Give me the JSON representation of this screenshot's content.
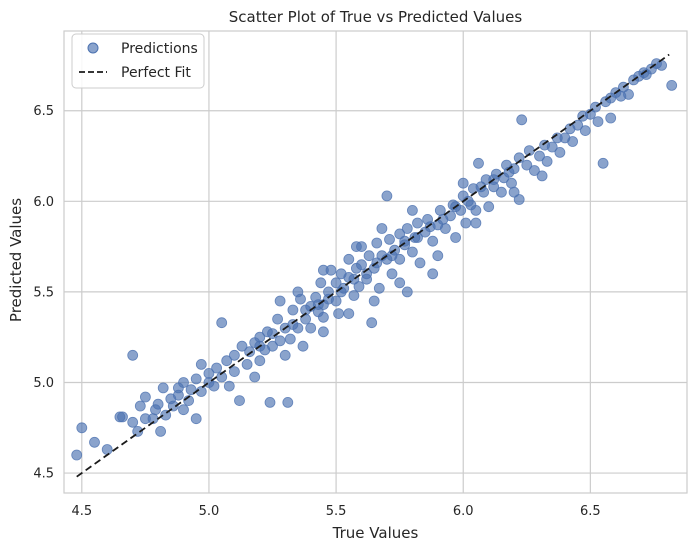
{
  "chart_data": {
    "type": "scatter",
    "title": "Scatter Plot of True vs Predicted Values",
    "xlabel": "True Values",
    "ylabel": "Predicted Values",
    "xlim": [
      4.43,
      6.88
    ],
    "ylim": [
      4.39,
      6.94
    ],
    "xticks": [
      4.5,
      5.0,
      5.5,
      6.0,
      6.5
    ],
    "xtick_labels": [
      "4.5",
      "5.0",
      "5.5",
      "6.0",
      "6.5"
    ],
    "yticks": [
      4.5,
      5.0,
      5.5,
      6.0,
      6.5
    ],
    "ytick_labels": [
      "4.5",
      "5.0",
      "5.5",
      "6.0",
      "6.5"
    ],
    "grid": true,
    "legend": {
      "position": "top-left",
      "entries": [
        "Predictions",
        "Perfect Fit"
      ]
    },
    "colors": {
      "points": "#4c72b0",
      "line": "#1a1a1a",
      "grid": "#cccccc",
      "axes": "#cccccc"
    },
    "series": [
      {
        "name": "Predictions",
        "kind": "scatter",
        "points": [
          [
            4.48,
            4.6
          ],
          [
            4.5,
            4.75
          ],
          [
            4.55,
            4.67
          ],
          [
            4.6,
            4.63
          ],
          [
            4.65,
            4.81
          ],
          [
            4.66,
            4.81
          ],
          [
            4.7,
            5.15
          ],
          [
            4.7,
            4.78
          ],
          [
            4.72,
            4.73
          ],
          [
            4.73,
            4.87
          ],
          [
            4.75,
            4.8
          ],
          [
            4.75,
            4.92
          ],
          [
            4.78,
            4.8
          ],
          [
            4.79,
            4.85
          ],
          [
            4.8,
            4.88
          ],
          [
            4.81,
            4.73
          ],
          [
            4.82,
            4.97
          ],
          [
            4.83,
            4.82
          ],
          [
            4.85,
            4.91
          ],
          [
            4.86,
            4.87
          ],
          [
            4.88,
            4.93
          ],
          [
            4.88,
            4.97
          ],
          [
            4.9,
            4.85
          ],
          [
            4.9,
            5.0
          ],
          [
            4.92,
            4.9
          ],
          [
            4.93,
            4.96
          ],
          [
            4.95,
            4.8
          ],
          [
            4.95,
            5.02
          ],
          [
            4.97,
            4.95
          ],
          [
            4.97,
            5.1
          ],
          [
            5.0,
            5.0
          ],
          [
            5.0,
            5.05
          ],
          [
            5.02,
            4.98
          ],
          [
            5.03,
            5.08
          ],
          [
            5.05,
            5.33
          ],
          [
            5.05,
            5.03
          ],
          [
            5.07,
            5.12
          ],
          [
            5.08,
            4.98
          ],
          [
            5.1,
            5.15
          ],
          [
            5.1,
            5.06
          ],
          [
            5.12,
            4.9
          ],
          [
            5.13,
            5.2
          ],
          [
            5.15,
            5.1
          ],
          [
            5.16,
            5.17
          ],
          [
            5.18,
            5.03
          ],
          [
            5.18,
            5.22
          ],
          [
            5.2,
            5.12
          ],
          [
            5.2,
            5.25
          ],
          [
            5.22,
            5.18
          ],
          [
            5.23,
            5.28
          ],
          [
            5.24,
            4.89
          ],
          [
            5.25,
            5.2
          ],
          [
            5.27,
            5.35
          ],
          [
            5.28,
            5.23
          ],
          [
            5.3,
            5.15
          ],
          [
            5.3,
            5.3
          ],
          [
            5.31,
            4.89
          ],
          [
            5.32,
            5.24
          ],
          [
            5.33,
            5.4
          ],
          [
            5.35,
            5.3
          ],
          [
            5.36,
            5.46
          ],
          [
            5.37,
            5.2
          ],
          [
            5.38,
            5.35
          ],
          [
            5.4,
            5.42
          ],
          [
            5.4,
            5.3
          ],
          [
            5.42,
            5.47
          ],
          [
            5.43,
            5.39
          ],
          [
            5.44,
            5.55
          ],
          [
            5.45,
            5.43
          ],
          [
            5.45,
            5.36
          ],
          [
            5.47,
            5.5
          ],
          [
            5.48,
            5.62
          ],
          [
            5.5,
            5.45
          ],
          [
            5.5,
            5.55
          ],
          [
            5.51,
            5.38
          ],
          [
            5.52,
            5.6
          ],
          [
            5.53,
            5.52
          ],
          [
            5.55,
            5.68
          ],
          [
            5.55,
            5.58
          ],
          [
            5.57,
            5.48
          ],
          [
            5.58,
            5.63
          ],
          [
            5.59,
            5.53
          ],
          [
            5.6,
            5.75
          ],
          [
            5.6,
            5.65
          ],
          [
            5.62,
            5.57
          ],
          [
            5.63,
            5.7
          ],
          [
            5.64,
            5.33
          ],
          [
            5.65,
            5.63
          ],
          [
            5.66,
            5.77
          ],
          [
            5.67,
            5.52
          ],
          [
            5.68,
            5.7
          ],
          [
            5.7,
            5.68
          ],
          [
            5.7,
            6.03
          ],
          [
            5.71,
            5.79
          ],
          [
            5.72,
            5.6
          ],
          [
            5.73,
            5.73
          ],
          [
            5.75,
            5.82
          ],
          [
            5.75,
            5.68
          ],
          [
            5.77,
            5.76
          ],
          [
            5.78,
            5.5
          ],
          [
            5.78,
            5.85
          ],
          [
            5.8,
            5.72
          ],
          [
            5.81,
            5.8
          ],
          [
            5.82,
            5.88
          ],
          [
            5.83,
            5.66
          ],
          [
            5.85,
            5.83
          ],
          [
            5.86,
            5.9
          ],
          [
            5.88,
            5.78
          ],
          [
            5.88,
            5.6
          ],
          [
            5.9,
            5.87
          ],
          [
            5.91,
            5.95
          ],
          [
            5.93,
            5.85
          ],
          [
            5.95,
            5.92
          ],
          [
            5.96,
            5.98
          ],
          [
            5.97,
            5.8
          ],
          [
            5.99,
            5.95
          ],
          [
            6.0,
            6.03
          ],
          [
            6.01,
            5.88
          ],
          [
            6.03,
            5.98
          ],
          [
            6.04,
            6.07
          ],
          [
            6.05,
            5.95
          ],
          [
            6.06,
            6.21
          ],
          [
            6.08,
            6.05
          ],
          [
            6.09,
            6.12
          ],
          [
            6.1,
            5.97
          ],
          [
            6.12,
            6.08
          ],
          [
            6.13,
            6.15
          ],
          [
            6.15,
            6.05
          ],
          [
            6.16,
            6.13
          ],
          [
            6.17,
            6.2
          ],
          [
            6.19,
            6.1
          ],
          [
            6.2,
            6.18
          ],
          [
            6.22,
            6.24
          ],
          [
            6.22,
            6.01
          ],
          [
            6.23,
            6.45
          ],
          [
            6.25,
            6.2
          ],
          [
            6.26,
            6.28
          ],
          [
            6.28,
            6.17
          ],
          [
            6.3,
            6.25
          ],
          [
            6.31,
            6.14
          ],
          [
            6.32,
            6.31
          ],
          [
            6.33,
            6.22
          ],
          [
            6.35,
            6.3
          ],
          [
            6.37,
            6.35
          ],
          [
            6.38,
            6.27
          ],
          [
            6.4,
            6.35
          ],
          [
            6.42,
            6.4
          ],
          [
            6.43,
            6.33
          ],
          [
            6.45,
            6.42
          ],
          [
            6.47,
            6.47
          ],
          [
            6.48,
            6.39
          ],
          [
            6.5,
            6.48
          ],
          [
            6.52,
            6.52
          ],
          [
            6.53,
            6.44
          ],
          [
            6.55,
            6.21
          ],
          [
            6.56,
            6.55
          ],
          [
            6.58,
            6.57
          ],
          [
            6.58,
            6.46
          ],
          [
            6.6,
            6.6
          ],
          [
            6.62,
            6.58
          ],
          [
            6.63,
            6.63
          ],
          [
            6.65,
            6.59
          ],
          [
            6.67,
            6.67
          ],
          [
            6.69,
            6.69
          ],
          [
            6.71,
            6.71
          ],
          [
            6.72,
            6.7
          ],
          [
            6.74,
            6.73
          ],
          [
            6.76,
            6.76
          ],
          [
            6.78,
            6.75
          ],
          [
            6.82,
            6.64
          ],
          [
            5.2,
            5.2
          ],
          [
            5.25,
            5.27
          ],
          [
            5.33,
            5.32
          ],
          [
            5.38,
            5.4
          ],
          [
            5.43,
            5.43
          ],
          [
            5.47,
            5.46
          ],
          [
            5.52,
            5.5
          ],
          [
            5.57,
            5.57
          ],
          [
            5.62,
            5.6
          ],
          [
            5.66,
            5.66
          ],
          [
            5.72,
            5.7
          ],
          [
            5.77,
            5.78
          ],
          [
            5.82,
            5.8
          ],
          [
            5.87,
            5.86
          ],
          [
            5.92,
            5.9
          ],
          [
            5.97,
            5.97
          ],
          [
            6.02,
            6.0
          ],
          [
            6.07,
            6.08
          ],
          [
            6.12,
            6.12
          ],
          [
            6.18,
            6.16
          ],
          [
            5.28,
            5.45
          ],
          [
            5.35,
            5.5
          ],
          [
            5.45,
            5.62
          ],
          [
            5.58,
            5.75
          ],
          [
            5.68,
            5.85
          ],
          [
            5.8,
            5.95
          ],
          [
            6.0,
            6.1
          ],
          [
            5.45,
            5.28
          ],
          [
            5.55,
            5.38
          ],
          [
            5.65,
            5.45
          ],
          [
            5.75,
            5.55
          ],
          [
            5.9,
            5.7
          ],
          [
            6.05,
            5.88
          ],
          [
            6.2,
            6.05
          ]
        ]
      },
      {
        "name": "Perfect Fit",
        "kind": "line",
        "points": [
          [
            4.48,
            4.48
          ],
          [
            6.81,
            6.81
          ]
        ]
      }
    ]
  }
}
